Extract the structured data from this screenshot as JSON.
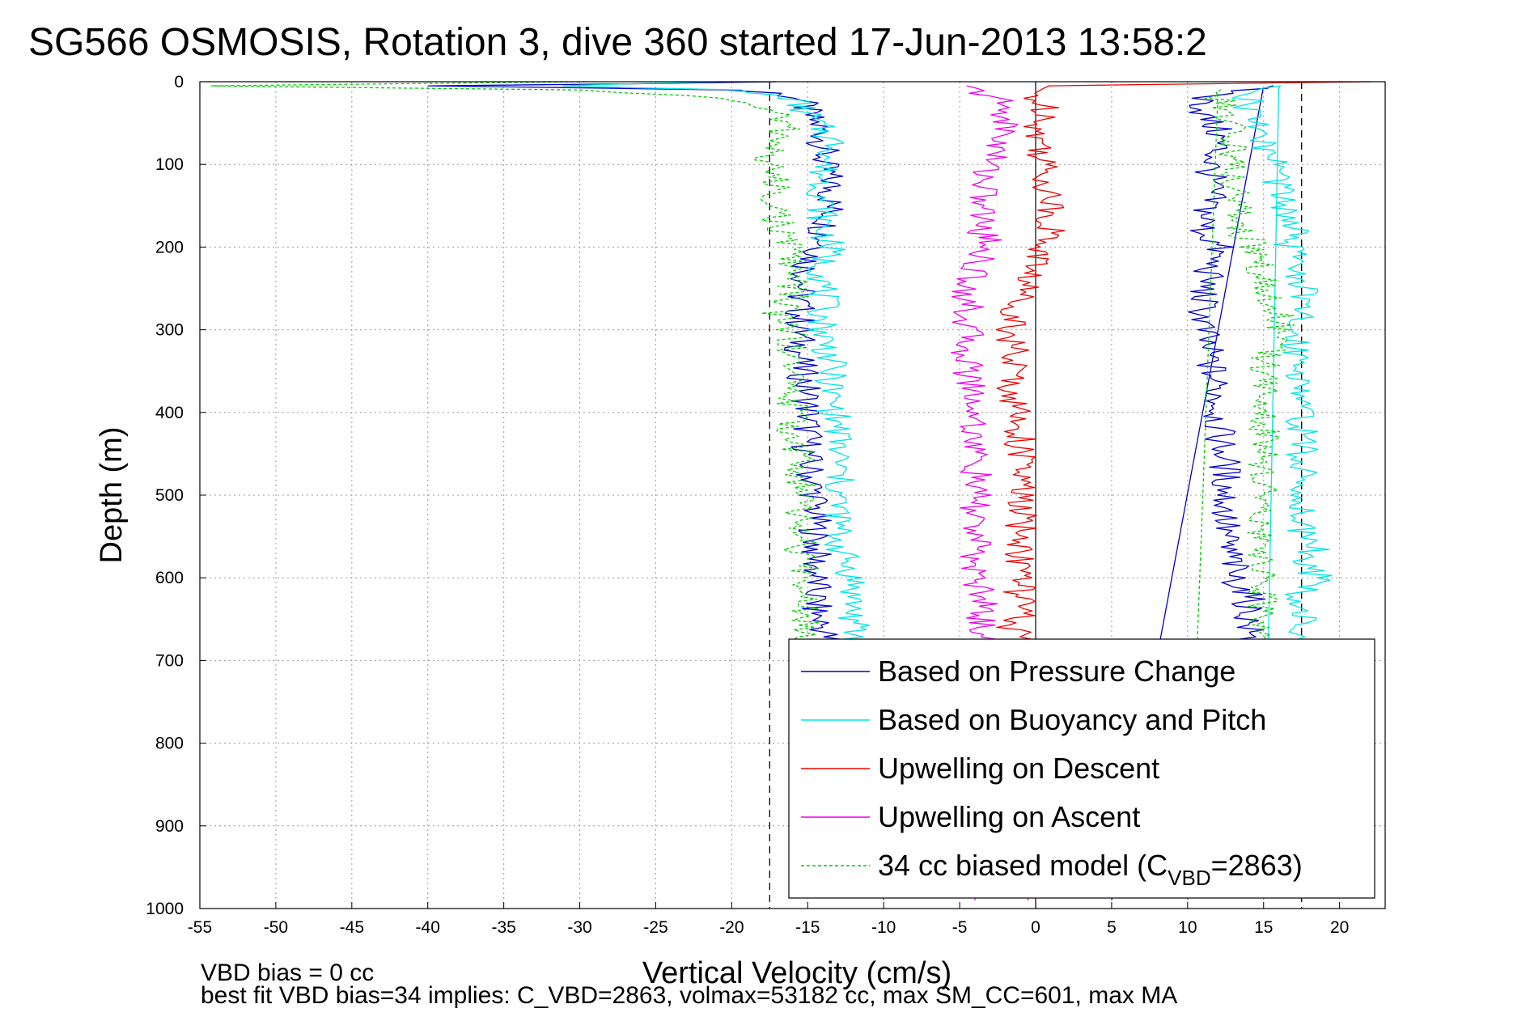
{
  "chart_data": {
    "type": "line",
    "title": "SG566 OSMOSIS, Rotation 3, dive 360 started 17-Jun-2013 13:58:2",
    "xlabel": "Vertical Velocity (cm/s)",
    "ylabel": "Depth (m)",
    "xlim": [
      -55,
      23
    ],
    "ylim": [
      0,
      1000
    ],
    "y_reversed": true,
    "xticks": [
      -55,
      -50,
      -45,
      -40,
      -35,
      -30,
      -25,
      -20,
      -15,
      -10,
      -5,
      0,
      5,
      10,
      15,
      20
    ],
    "yticks": [
      0,
      100,
      200,
      300,
      400,
      500,
      600,
      700,
      800,
      900,
      1000
    ],
    "grid": true,
    "legend_position": "bottom-right",
    "reference_lines": {
      "vertical_dashed": [
        -17.5,
        17.5
      ],
      "vertical_solid": [
        0
      ]
    },
    "series": [
      {
        "name": "Based on Pressure Change",
        "color": "#0000cc",
        "style": "solid",
        "segments": [
          {
            "depth": [
              0,
              5,
              10,
              14,
              20,
              40,
              60,
              80,
              100,
              120,
              140,
              160,
              180,
              200,
              220,
              260,
              280,
              300,
              340,
              380,
              420,
              460,
              500,
              540,
              560,
              580,
              600,
              620,
              640,
              660,
              680,
              990
            ],
            "value": [
              -16,
              -39,
              -20,
              -17,
              -15.5,
              -15,
              -14,
              -14,
              -14,
              -13.5,
              -13.5,
              -13.5,
              -14,
              -14,
              -15,
              -15.5,
              -15.5,
              -15.5,
              -15.5,
              -15,
              -15,
              -15,
              -14.5,
              -14.5,
              -14.5,
              -14.5,
              -14.5,
              -14.5,
              -14.5,
              -14,
              -13.5,
              -10
            ]
          },
          {
            "depth": [
              990,
              5,
              20,
              40,
              60,
              80,
              100,
              140,
              180,
              200,
              220,
              260,
              300,
              340,
              380,
              420,
              460,
              500,
              540,
              560,
              580,
              600,
              620,
              640,
              660,
              680
            ],
            "value": [
              5,
              15,
              11,
              11,
              12,
              12,
              11.5,
              11.5,
              11,
              12,
              11.5,
              11,
              11,
              11.5,
              12,
              12,
              12.5,
              12.5,
              12.5,
              12.5,
              13,
              13,
              14,
              14,
              14,
              14
            ]
          }
        ]
      },
      {
        "name": "Based on Buoyancy and Pitch",
        "color": "#00e5e5",
        "style": "solid",
        "segments": [
          {
            "depth": [
              0,
              5,
              10,
              20,
              40,
              60,
              80,
              100,
              140,
              180,
              200,
              220,
              260,
              300,
              340,
              380,
              420,
              460,
              500,
              540,
              560,
              580,
              600,
              620,
              640,
              660,
              680,
              990
            ],
            "value": [
              -20,
              -32,
              -20,
              -16,
              -15,
              -14,
              -13,
              -14,
              -14,
              -14,
              -13.5,
              -14,
              -14,
              -14,
              -13.5,
              -13.5,
              -13,
              -13,
              -13,
              -13,
              -13,
              -12.5,
              -12,
              -12,
              -12,
              -12,
              -12,
              -10
            ]
          },
          {
            "depth": [
              990,
              5,
              20,
              40,
              60,
              80,
              100,
              140,
              180,
              200,
              220,
              260,
              300,
              340,
              380,
              420,
              460,
              500,
              540,
              560,
              580,
              600,
              620,
              640,
              660,
              680
            ],
            "value": [
              15,
              16,
              14,
              14,
              15,
              15,
              16,
              16,
              17,
              16.5,
              17.5,
              17.5,
              17,
              17.5,
              17.5,
              17.5,
              17.5,
              17.5,
              17.5,
              18.5,
              18,
              18.5,
              17.5,
              17.5,
              17.5,
              17.5
            ]
          }
        ]
      },
      {
        "name": "Upwelling on Descent",
        "color": "#ee0000",
        "style": "solid",
        "segments": [
          {
            "depth": [
              0,
              5,
              20,
              40,
              60,
              80,
              100,
              140,
              180,
              200,
              220,
              240,
              260,
              300,
              340,
              380,
              420,
              460,
              500,
              540,
              560,
              580,
              600,
              620,
              640,
              660,
              680,
              990
            ],
            "value": [
              22,
              0,
              0,
              1,
              0,
              0.5,
              0.5,
              1,
              1,
              0.5,
              0,
              -0.5,
              -1,
              -1.5,
              -1.5,
              -1.5,
              -1,
              -1,
              -1,
              -1,
              -1,
              -1,
              -1,
              -1,
              -1,
              -1.5,
              -1,
              -0.5
            ]
          }
        ]
      },
      {
        "name": "Upwelling on Ascent",
        "color": "#ee00ee",
        "style": "solid",
        "segments": [
          {
            "depth": [
              5,
              20,
              40,
              60,
              80,
              100,
              140,
              180,
              200,
              220,
              260,
              300,
              340,
              380,
              420,
              460,
              500,
              540,
              560,
              580,
              600,
              620,
              640,
              660,
              680,
              990
            ],
            "value": [
              -5,
              -2.5,
              -2,
              -2,
              -2.5,
              -3,
              -3.5,
              -3.5,
              -3,
              -4,
              -4.5,
              -4.5,
              -4.5,
              -4,
              -4,
              -4,
              -4,
              -4,
              -4,
              -4,
              -4,
              -3.5,
              -3.5,
              -3.5,
              -3.5,
              -4
            ]
          }
        ]
      },
      {
        "name": "34 cc biased model (C_VBD=2863)",
        "color": "#00cc00",
        "style": "dashed",
        "segments": [
          {
            "depth": [
              0,
              5,
              10,
              20,
              40,
              60,
              80,
              100,
              140,
              180,
              200,
              220,
              260,
              280,
              300,
              340,
              380,
              420,
              460,
              500,
              540,
              560,
              580,
              600,
              620,
              640,
              660,
              680,
              990
            ],
            "value": [
              -30,
              -55,
              -30,
              -20,
              -17,
              -16.5,
              -17.5,
              -17.5,
              -17,
              -17,
              -16,
              -16,
              -16,
              -17,
              -16,
              -16,
              -16,
              -16,
              -15.5,
              -15.5,
              -15.5,
              -15.5,
              -15.5,
              -15,
              -15,
              -15,
              -15,
              -15,
              -10
            ]
          },
          {
            "depth": [
              990,
              10,
              20,
              40,
              60,
              100,
              140,
              180,
              200,
              240,
              280,
              300,
              340,
              380,
              420,
              460,
              500,
              540,
              560,
              600,
              620,
              640,
              660,
              680
            ],
            "value": [
              10,
              12,
              12,
              12.5,
              13,
              13,
              13,
              13.5,
              14.5,
              15,
              16,
              16,
              15,
              15,
              15,
              15,
              15,
              15,
              15,
              15,
              15,
              15,
              15,
              15
            ]
          }
        ]
      }
    ],
    "legend_entries": [
      {
        "label": "Based on Pressure Change",
        "color": "#0000cc",
        "style": "solid"
      },
      {
        "label": "Based on Buoyancy and Pitch",
        "color": "#00e5e5",
        "style": "solid"
      },
      {
        "label": "Upwelling on Descent",
        "color": "#ee0000",
        "style": "solid"
      },
      {
        "label": "Upwelling on Ascent",
        "color": "#ee00ee",
        "style": "solid"
      },
      {
        "label_main": "34 cc biased model (C",
        "label_sub": "VBD",
        "label_tail": "=2863)",
        "color": "#00cc00",
        "style": "dashed"
      }
    ]
  },
  "annotations": {
    "vbd_bias": "VBD bias = 0 cc",
    "best_fit": "best fit VBD bias=34 implies: C_VBD=2863, volmax=53182 cc, max SM_CC=601, max MA"
  }
}
